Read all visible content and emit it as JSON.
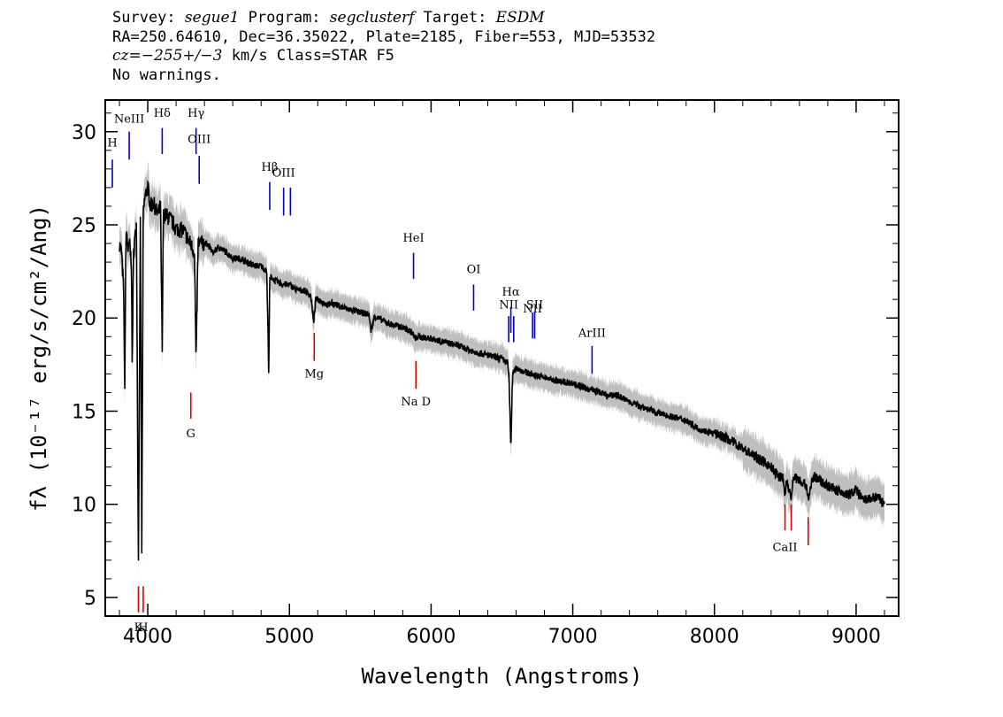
{
  "header": {
    "line1": {
      "survey_label": "Survey:",
      "survey": "segue1",
      "program_label": "Program:",
      "program": "segclusterf",
      "target_label": "Target:",
      "target": "ESDM"
    },
    "line2": "RA=250.64610, Dec=36.35022, Plate=2185, Fiber=553, MJD=53532",
    "line3": {
      "cz": "cz=−255+/−3",
      "rest": " km/s Class=STAR F5"
    },
    "line4": "No warnings."
  },
  "chart_data": {
    "type": "line",
    "xlabel": "Wavelength (Angstroms)",
    "ylabel": "fλ (10⁻¹⁷ erg/s/cm²/Ang)",
    "xlim": [
      3700,
      9300
    ],
    "ylim": [
      4,
      31.7
    ],
    "x_ticks": [
      4000,
      5000,
      6000,
      7000,
      8000,
      9000
    ],
    "y_ticks": [
      5,
      10,
      15,
      20,
      25,
      30
    ],
    "x_tick_labels": [
      "4000",
      "5000",
      "6000",
      "7000",
      "8000",
      "9000"
    ],
    "y_tick_labels": [
      "5",
      "10",
      "15",
      "20",
      "25",
      "30"
    ],
    "grid": false,
    "series": [
      {
        "color": "#000000",
        "x": [
          3800,
          3815,
          3830,
          3838,
          3845,
          3852,
          3862,
          3870,
          3885,
          3890,
          3900,
          3920,
          3934,
          3948,
          3958,
          3968,
          3980,
          4000,
          4020,
          4040,
          4070,
          4090,
          4102,
          4110,
          4130,
          4160,
          4200,
          4250,
          4300,
          4330,
          4341,
          4355,
          4380,
          4420,
          4460,
          4500,
          4560,
          4600,
          4650,
          4700,
          4750,
          4800,
          4840,
          4854,
          4861,
          4870,
          4900,
          4950,
          5000,
          5050,
          5100,
          5150,
          5172,
          5185,
          5200,
          5270,
          5300,
          5400,
          5500,
          5560,
          5577,
          5600,
          5700,
          5800,
          5870,
          5890,
          5900,
          6000,
          6100,
          6200,
          6300,
          6400,
          6500,
          6540,
          6550,
          6563,
          6575,
          6600,
          6700,
          6800,
          6900,
          7000,
          7100,
          7200,
          7250,
          7300,
          7400,
          7500,
          7600,
          7700,
          7800,
          7900,
          8000,
          8100,
          8200,
          8300,
          8400,
          8450,
          8480,
          8498,
          8510,
          8542,
          8560,
          8600,
          8650,
          8662,
          8680,
          8700,
          8800,
          8900,
          8950,
          9000,
          9050,
          9100,
          9150,
          9200
        ],
        "values": [
          24.0,
          23.5,
          21.5,
          15.8,
          24.0,
          24.5,
          23.5,
          24.0,
          23.0,
          17.5,
          23.5,
          25.0,
          6.8,
          25.2,
          7.5,
          25.5,
          26.5,
          27.0,
          26.0,
          26.2,
          25.5,
          26.0,
          18.0,
          25.5,
          25.5,
          25.3,
          24.8,
          24.7,
          24.0,
          23.5,
          17.5,
          24.0,
          24.0,
          24.0,
          23.5,
          23.8,
          23.5,
          23.2,
          23.2,
          23.0,
          22.8,
          22.8,
          22.5,
          17.2,
          22.0,
          22.2,
          22.0,
          21.8,
          21.8,
          21.5,
          21.5,
          21.2,
          19.8,
          21.0,
          21.0,
          20.7,
          20.8,
          20.5,
          20.3,
          20.2,
          19.3,
          20.1,
          19.7,
          19.5,
          19.2,
          18.8,
          19.0,
          18.9,
          18.7,
          18.5,
          18.2,
          18.0,
          17.8,
          17.6,
          16.8,
          13.0,
          17.0,
          17.3,
          17.0,
          16.8,
          16.6,
          16.5,
          16.2,
          16.0,
          15.8,
          15.9,
          15.5,
          15.2,
          14.9,
          14.7,
          14.5,
          14.0,
          13.8,
          13.5,
          13.0,
          12.5,
          12.0,
          11.5,
          11.5,
          10.5,
          11.3,
          10.3,
          11.5,
          11.3,
          11.0,
          10.2,
          11.0,
          11.5,
          11.0,
          10.6,
          10.5,
          10.8,
          10.2,
          10.3,
          10.4,
          10.0
        ]
      }
    ],
    "lines": [
      {
        "label": "H",
        "x": 3750,
        "y_low": 27.0,
        "y_high": 28.5,
        "color": "#0000cc",
        "label_y": 29.2
      },
      {
        "label": "NeIII",
        "x": 3869,
        "y_low": 28.5,
        "y_high": 30.0,
        "color": "#0000cc",
        "label_y": 30.5
      },
      {
        "label": "Hδ",
        "x": 4102,
        "y_low": 28.8,
        "y_high": 30.2,
        "color": "#0000cc",
        "label_y": 30.8
      },
      {
        "label": "Hγ",
        "x": 4341,
        "y_low": 28.8,
        "y_high": 30.2,
        "color": "#0000cc",
        "label_y": 30.8
      },
      {
        "label": "OIII",
        "x": 4363,
        "y_low": 27.2,
        "y_high": 28.7,
        "color": "#0000cc",
        "label_y": 29.4
      },
      {
        "label": "Hβ",
        "x": 4861,
        "y_low": 25.8,
        "y_high": 27.3,
        "color": "#0000cc",
        "label_y": 27.9
      },
      {
        "label": "OIII",
        "x": 4959,
        "y_low": 25.5,
        "y_high": 27.0,
        "color": "#0000cc",
        "label_y": 27.6
      },
      {
        "label": "",
        "x": 5007,
        "y_low": 25.5,
        "y_high": 27.0,
        "color": "#0000cc",
        "label_y": 27.6
      },
      {
        "label": "HeI",
        "x": 5876,
        "y_low": 22.1,
        "y_high": 23.5,
        "color": "#0000cc",
        "label_y": 24.1
      },
      {
        "label": "OI",
        "x": 6300,
        "y_low": 20.4,
        "y_high": 21.8,
        "color": "#0000cc",
        "label_y": 22.4
      },
      {
        "label": "NII",
        "x": 6548,
        "y_low": 18.7,
        "y_high": 20.1,
        "color": "#0000cc",
        "label_y": 20.5
      },
      {
        "label": "Hα",
        "x": 6563,
        "y_low": 19.2,
        "y_high": 20.6,
        "color": "#0000cc",
        "label_y": 21.2
      },
      {
        "label": "",
        "x": 6583,
        "y_low": 18.7,
        "y_high": 20.1,
        "color": "#0000cc",
        "label_y": 20.5
      },
      {
        "label": "NII",
        "x": 6716,
        "y_low": 18.9,
        "y_high": 20.3,
        "color": "#0000cc",
        "label_y": 20.3
      },
      {
        "label": "SII",
        "x": 6731,
        "y_low": 18.9,
        "y_high": 20.3,
        "color": "#0000cc",
        "label_y": 20.5
      },
      {
        "label": "ArIII",
        "x": 7136,
        "y_low": 17.0,
        "y_high": 18.5,
        "color": "#0000cc",
        "label_y": 19.0
      },
      {
        "label": "Mg",
        "x": 5175,
        "y_low": 17.7,
        "y_high": 19.2,
        "color": "#dd0000",
        "label_y": 16.8
      },
      {
        "label": "Na D",
        "x": 5893,
        "y_low": 16.2,
        "y_high": 17.7,
        "color": "#dd0000",
        "label_y": 15.3
      },
      {
        "label": "G",
        "x": 4304,
        "y_low": 14.6,
        "y_high": 16.0,
        "color": "#dd0000",
        "label_y": 13.6
      },
      {
        "label": "K",
        "x": 3934,
        "y_low": 4.2,
        "y_high": 5.6,
        "color": "#dd0000",
        "label_y": 3.2
      },
      {
        "label": "H",
        "x": 3968,
        "y_low": 4.2,
        "y_high": 5.6,
        "color": "#dd0000",
        "label_y": 3.2
      },
      {
        "label": "CaII",
        "x": 8498,
        "y_low": 8.6,
        "y_high": 10.0,
        "color": "#dd0000",
        "label_y": 7.5
      },
      {
        "label": "",
        "x": 8542,
        "y_low": 8.6,
        "y_high": 10.0,
        "color": "#dd0000",
        "label_y": 7.5
      },
      {
        "label": "",
        "x": 8662,
        "y_low": 7.8,
        "y_high": 9.3,
        "color": "#dd0000",
        "label_y": 7.5
      }
    ],
    "error_band_color": "#bfbfbf"
  }
}
